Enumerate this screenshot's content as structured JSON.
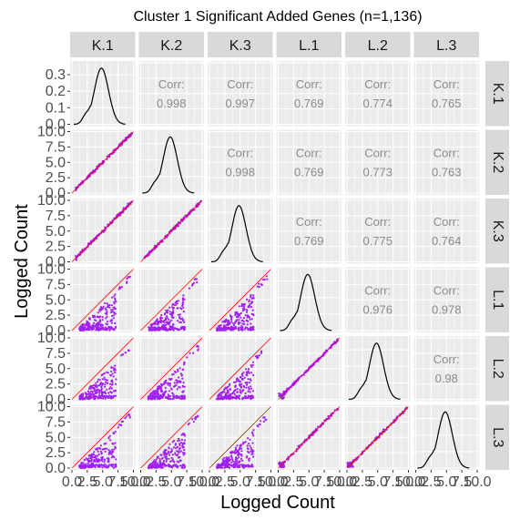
{
  "chart_data": {
    "type": "scatter",
    "title": "Cluster 1 Significant Added Genes (n=1,136)",
    "xlabel": "Logged Count",
    "ylabel": "Logged Count",
    "samples": [
      "K.1",
      "K.2",
      "K.3",
      "L.1",
      "L.2",
      "L.3"
    ],
    "xlim": [
      0,
      10
    ],
    "ylim": [
      0,
      10
    ],
    "x_ticks": [
      "0.0",
      "2.5",
      "5.0",
      "7.5",
      "10.0"
    ],
    "y_ticks": [
      "0.0",
      "2.5",
      "5.0",
      "7.5",
      "10.0"
    ],
    "density_ylim": [
      0,
      0.35
    ],
    "density_y_ticks": [
      "0.0",
      "0.1",
      "0.2",
      "0.3"
    ],
    "corr_label": "Corr:",
    "correlations": [
      {
        "row": "K.1",
        "col": "K.2",
        "value": "0.998"
      },
      {
        "row": "K.1",
        "col": "K.3",
        "value": "0.997"
      },
      {
        "row": "K.1",
        "col": "L.1",
        "value": "0.769"
      },
      {
        "row": "K.1",
        "col": "L.2",
        "value": "0.774"
      },
      {
        "row": "K.1",
        "col": "L.3",
        "value": "0.765"
      },
      {
        "row": "K.2",
        "col": "K.3",
        "value": "0.998"
      },
      {
        "row": "K.2",
        "col": "L.1",
        "value": "0.769"
      },
      {
        "row": "K.2",
        "col": "L.2",
        "value": "0.773"
      },
      {
        "row": "K.2",
        "col": "L.3",
        "value": "0.763"
      },
      {
        "row": "K.3",
        "col": "L.1",
        "value": "0.769"
      },
      {
        "row": "K.3",
        "col": "L.2",
        "value": "0.775"
      },
      {
        "row": "K.3",
        "col": "L.3",
        "value": "0.764"
      },
      {
        "row": "L.1",
        "col": "L.2",
        "value": "0.976"
      },
      {
        "row": "L.1",
        "col": "L.3",
        "value": "0.978"
      },
      {
        "row": "L.2",
        "col": "L.3",
        "value": "0.98"
      }
    ],
    "density_peak": {
      "x": 4.8,
      "y": 0.34
    },
    "grid": true,
    "reference_line": {
      "slope": 1,
      "intercept": 0,
      "color": "#ff0000"
    },
    "point_color": "#a020f0",
    "panel_background": "#ebebeb",
    "strip_background": "#d9d9d9"
  }
}
